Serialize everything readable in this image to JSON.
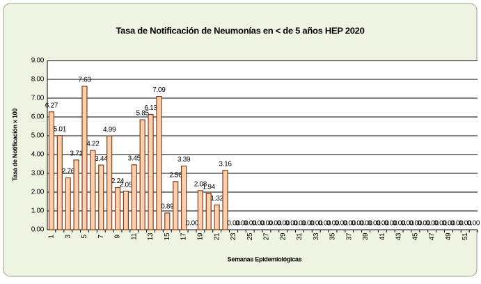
{
  "chart_data": {
    "type": "bar",
    "title": "Tasa de Notificación de Neumonías en < de 5 años HEP 2020",
    "x_label": "Semanas Epidemiológicas",
    "y_label": "Tasa de Notificación x 100",
    "categories": [
      "1",
      null,
      "3",
      null,
      "5",
      null,
      "7",
      null,
      "9",
      null,
      "11",
      null,
      "13",
      null,
      "15",
      null,
      "17",
      null,
      "19",
      null,
      "21",
      null,
      "23",
      null,
      "25",
      null,
      "27",
      null,
      "29",
      null,
      "31",
      null,
      "33",
      null,
      "35",
      null,
      "37",
      null,
      "39",
      null,
      "41",
      null,
      "43",
      null,
      "45",
      null,
      "47",
      null,
      "49",
      null,
      "51",
      null
    ],
    "values": [
      6.27,
      5.01,
      2.76,
      3.71,
      7.63,
      4.22,
      3.44,
      4.99,
      2.24,
      2.05,
      3.45,
      5.85,
      6.13,
      7.09,
      0.89,
      2.56,
      3.39,
      0,
      2.08,
      1.94,
      1.32,
      3.16,
      0,
      0,
      0,
      0,
      0,
      0,
      0,
      0,
      0,
      0,
      0,
      0,
      0,
      0,
      0,
      0,
      0,
      0,
      0,
      0,
      0,
      0,
      0,
      0,
      0,
      0,
      0,
      0,
      0,
      0
    ],
    "value_labels": [
      "6.27",
      "5.01",
      "2.76",
      "3.71",
      "7.63",
      "4.22",
      "3.44",
      "4.99",
      "2.24",
      "2.05",
      "3.45",
      "5.85",
      "6.13",
      "7.09",
      "0.89",
      "2.56",
      "3.39",
      "0.00",
      "2.08",
      "1.94",
      "1.32",
      "3.16",
      "0.00",
      "0.00",
      "0.00",
      "0.00",
      "0.00",
      "0.00",
      "0.00",
      "0.00",
      "0.00",
      "0.00",
      "0.00",
      "0.00",
      "0.00",
      "0.00",
      "0.00",
      "0.00",
      "0.00",
      "0.00",
      "0.00",
      "0.00",
      "0.00",
      "0.00",
      "0.00",
      "0.00",
      "0.00",
      "0.00",
      "0.00",
      "0.00",
      "0.00",
      "0.00"
    ],
    "color": "#f9d0b0",
    "edge_color": "#8b3a0f",
    "ylim": [
      0,
      9
    ],
    "yticks": [
      {
        "value": 0,
        "label": "0.00"
      },
      {
        "value": 1,
        "label": "1.00"
      },
      {
        "value": 2,
        "label": "2.00"
      },
      {
        "value": 3,
        "label": "3.00"
      },
      {
        "value": 4,
        "label": "4.00"
      },
      {
        "value": 5,
        "label": "5.00"
      },
      {
        "value": 6,
        "label": "6.00"
      },
      {
        "value": 7,
        "label": "7.00"
      },
      {
        "value": 8,
        "label": "8.00"
      },
      {
        "value": 9,
        "label": "9.00"
      }
    ],
    "grid": true
  }
}
